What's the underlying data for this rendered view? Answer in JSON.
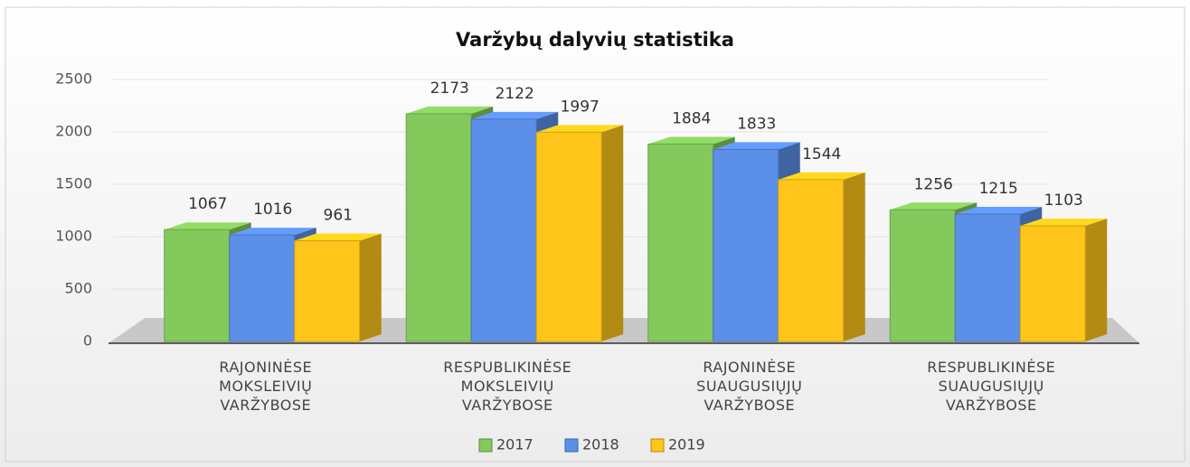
{
  "chart_data": {
    "type": "bar",
    "title": "Varžybų dalyvių statistika",
    "categories": [
      "RAJONINĖSE\nMOKSLEIVIŲ\nVARŽYBOSE",
      "RESPUBLIKINĖSE\nMOKSLEIVIŲ\nVARŽYBOSE",
      "RAJONINĖSE\nSUAUGUSIŲJŲ\nVARŽYBOSE",
      "RESPUBLIKINĖSE\nSUAUGUSIŲJŲ\nVARŽYBOSE"
    ],
    "series": [
      {
        "name": "2017",
        "color": "#84c95c",
        "values": [
          1067,
          2173,
          1884,
          1256
        ]
      },
      {
        "name": "2018",
        "color": "#5b8fe8",
        "values": [
          1016,
          2122,
          1833,
          1215
        ]
      },
      {
        "name": "2019",
        "color": "#ffc51a",
        "values": [
          961,
          1997,
          1544,
          1103
        ]
      }
    ],
    "ylim": [
      0,
      2500
    ],
    "yticks": [
      0,
      500,
      1000,
      1500,
      2000,
      2500
    ],
    "grid": true,
    "legend": "bottom"
  }
}
